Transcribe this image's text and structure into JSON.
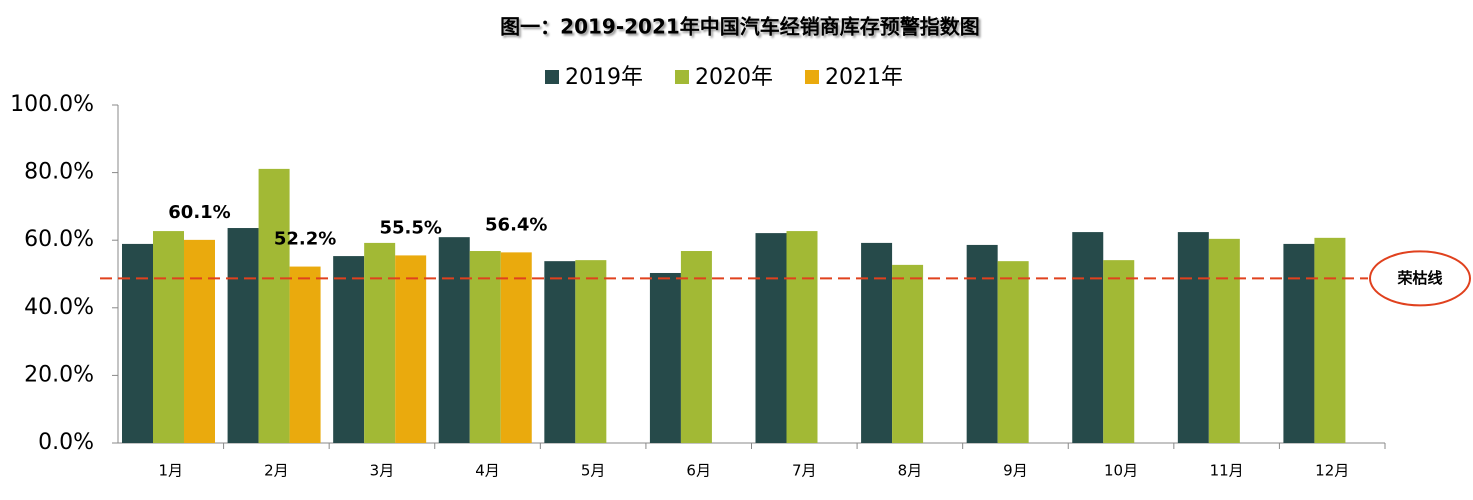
{
  "chart_data": {
    "type": "bar",
    "title": "图一：2019-2021年中国汽车经销商库存预警指数图",
    "categories": [
      "1月",
      "2月",
      "3月",
      "4月",
      "5月",
      "6月",
      "7月",
      "8月",
      "9月",
      "10月",
      "11月",
      "12月"
    ],
    "series": [
      {
        "name": "2019年",
        "color": "#264a4a",
        "values": [
          58.9,
          63.6,
          55.3,
          60.9,
          53.8,
          50.3,
          62.1,
          59.2,
          58.6,
          62.4,
          62.4,
          58.9
        ]
      },
      {
        "name": "2020年",
        "color": "#a2b935",
        "values": [
          62.7,
          81.1,
          59.2,
          56.8,
          54.1,
          56.8,
          62.7,
          52.7,
          53.8,
          54.1,
          60.4,
          60.7
        ]
      },
      {
        "name": "2021年",
        "color": "#eaaa0d",
        "values": [
          60.1,
          52.2,
          55.5,
          56.4,
          null,
          null,
          null,
          null,
          null,
          null,
          null,
          null
        ],
        "value_labels": [
          "60.1%",
          "52.2%",
          "55.5%",
          "56.4%",
          null,
          null,
          null,
          null,
          null,
          null,
          null,
          null
        ]
      }
    ],
    "ylim": [
      0,
      100
    ],
    "yticks": [
      {
        "value": 0,
        "label": "0.0%"
      },
      {
        "value": 20,
        "label": "20.0%"
      },
      {
        "value": 40,
        "label": "40.0%"
      },
      {
        "value": 60,
        "label": "60.0%"
      },
      {
        "value": 80,
        "label": "80.0%"
      },
      {
        "value": 100,
        "label": "100.0%"
      }
    ],
    "reference_line": {
      "value": 48.7,
      "label": "荣枯线",
      "color": "#e0411e"
    }
  }
}
